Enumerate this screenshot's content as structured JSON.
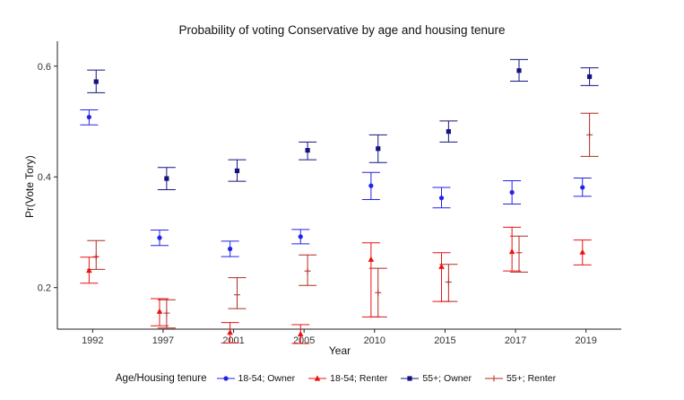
{
  "chart_data": {
    "type": "scatter",
    "title": "Probability of voting Conservative by age and housing tenure",
    "xlabel": "Year",
    "ylabel": "Pr(Vote Tory)",
    "categories": [
      "1992",
      "1997",
      "2001",
      "2005",
      "2010",
      "2015",
      "2017",
      "2019"
    ],
    "ylim": [
      0.125,
      0.645
    ],
    "yticks": [
      0.2,
      0.4,
      0.6
    ],
    "yticklabels": [
      "0.2",
      "0.4",
      "0.6"
    ],
    "grid": false,
    "legend": {
      "title": "Age/Housing tenure",
      "position": "bottom"
    },
    "series": [
      {
        "name": "18-54; Owner",
        "color": "#2222ee",
        "marker": "circle",
        "offset": -0.05,
        "values": [
          0.508,
          0.29,
          0.27,
          0.292,
          0.384,
          0.362,
          0.372,
          0.381
        ],
        "lower": [
          0.494,
          0.276,
          0.256,
          0.279,
          0.359,
          0.344,
          0.351,
          0.365
        ],
        "upper": [
          0.521,
          0.304,
          0.284,
          0.305,
          0.408,
          0.381,
          0.393,
          0.398
        ]
      },
      {
        "name": "18-54; Renter",
        "color": "#ee1111",
        "marker": "triangle",
        "offset": -0.05,
        "values": [
          0.231,
          0.157,
          0.119,
          0.116,
          0.251,
          0.238,
          0.265,
          0.264
        ],
        "lower": [
          0.208,
          0.131,
          0.1,
          0.099,
          0.147,
          0.175,
          0.23,
          0.241
        ],
        "upper": [
          0.255,
          0.18,
          0.137,
          0.133,
          0.281,
          0.263,
          0.309,
          0.286
        ]
      },
      {
        "name": "55+; Owner",
        "color": "#141480",
        "marker": "square",
        "offset": 0.05,
        "values": [
          0.572,
          0.397,
          0.411,
          0.448,
          0.451,
          0.482,
          0.592,
          0.581
        ],
        "lower": [
          0.552,
          0.377,
          0.392,
          0.431,
          0.426,
          0.463,
          0.573,
          0.565
        ],
        "upper": [
          0.593,
          0.417,
          0.431,
          0.463,
          0.476,
          0.501,
          0.612,
          0.597
        ]
      },
      {
        "name": "55+; Renter",
        "color": "#b22a22",
        "marker": "cross",
        "offset": 0.05,
        "values": [
          0.256,
          0.154,
          0.187,
          0.23,
          0.191,
          0.21,
          0.263,
          0.476
        ],
        "lower": [
          0.233,
          0.127,
          0.162,
          0.204,
          0.147,
          0.175,
          0.228,
          0.437
        ],
        "upper": [
          0.285,
          0.178,
          0.218,
          0.259,
          0.235,
          0.242,
          0.293,
          0.515
        ]
      }
    ]
  }
}
